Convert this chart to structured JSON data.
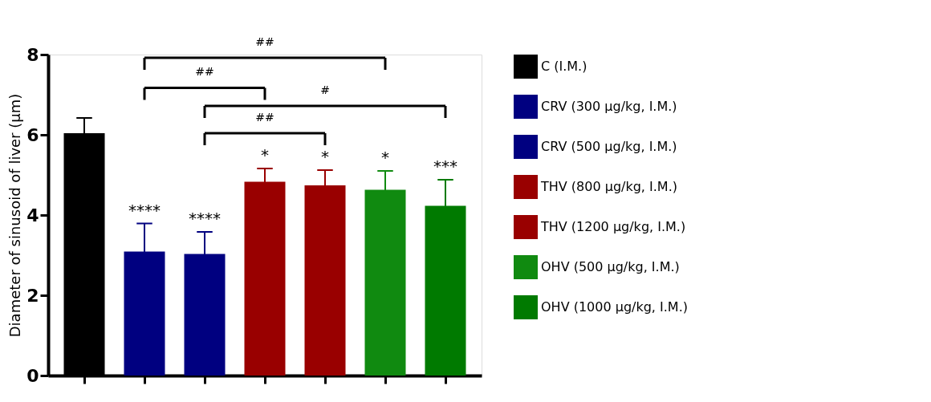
{
  "chart_data": {
    "type": "bar",
    "ylabel": "Diameter of sinusoid of liver (μm)",
    "categories": [
      null,
      null,
      null,
      null,
      null,
      null,
      null
    ],
    "series": [
      {
        "name": "C (I.M.)",
        "color": "#000000",
        "values": [
          6.04,
          null,
          null,
          null,
          null,
          null,
          null
        ],
        "errors": [
          0.38,
          null,
          null,
          null,
          null,
          null,
          null
        ],
        "value_labels": [
          null,
          null,
          null,
          null,
          null,
          null,
          null
        ]
      },
      {
        "name": "CRV (300 μg/kg, I.M.)",
        "color": "#000080",
        "values": [
          null,
          3.09,
          null,
          null,
          null,
          null,
          null
        ],
        "errors": [
          null,
          0.7,
          null,
          null,
          null,
          null,
          null
        ],
        "value_labels": [
          null,
          "****",
          null,
          null,
          null,
          null,
          null
        ]
      },
      {
        "name": "CRV (500 μg/kg, I.M.)",
        "color": "#000080",
        "values": [
          null,
          null,
          3.03,
          null,
          null,
          null,
          null
        ],
        "errors": [
          null,
          null,
          0.55,
          null,
          null,
          null,
          null
        ],
        "value_labels": [
          null,
          null,
          "****",
          null,
          null,
          null,
          null
        ]
      },
      {
        "name": "THV (800 μg/kg, I.M.)",
        "color": "#990000",
        "values": [
          null,
          null,
          null,
          4.83,
          null,
          null,
          null
        ],
        "errors": [
          null,
          null,
          null,
          0.33,
          null,
          null,
          null
        ],
        "value_labels": [
          null,
          null,
          null,
          "*",
          null,
          null,
          null
        ]
      },
      {
        "name": "THV (1200 μg/kg, I.M.)",
        "color": "#990000",
        "values": [
          null,
          null,
          null,
          null,
          4.74,
          null,
          null
        ],
        "errors": [
          null,
          null,
          null,
          null,
          0.38,
          null,
          null
        ],
        "value_labels": [
          null,
          null,
          null,
          null,
          "*",
          null,
          null
        ]
      },
      {
        "name": "OHV (500 μg/kg, I.M.)",
        "color": "#108a10",
        "values": [
          null,
          null,
          null,
          null,
          null,
          4.63,
          null
        ],
        "errors": [
          null,
          null,
          null,
          null,
          null,
          0.47,
          null
        ],
        "value_labels": [
          null,
          null,
          null,
          null,
          null,
          "*",
          null
        ]
      },
      {
        "name": "OHV (1000 μg/kg, I.M.)",
        "color": "#007a00",
        "values": [
          null,
          null,
          null,
          null,
          null,
          null,
          4.23
        ],
        "errors": [
          null,
          null,
          null,
          null,
          null,
          null,
          0.65
        ],
        "value_labels": [
          null,
          null,
          null,
          null,
          null,
          null,
          "***"
        ]
      }
    ],
    "ylim": [
      0,
      8
    ],
    "yticks": [
      0,
      2,
      4,
      6,
      8
    ],
    "grid": false,
    "legend": "right",
    "annotations": [
      "##",
      "##",
      "#",
      "##"
    ]
  }
}
